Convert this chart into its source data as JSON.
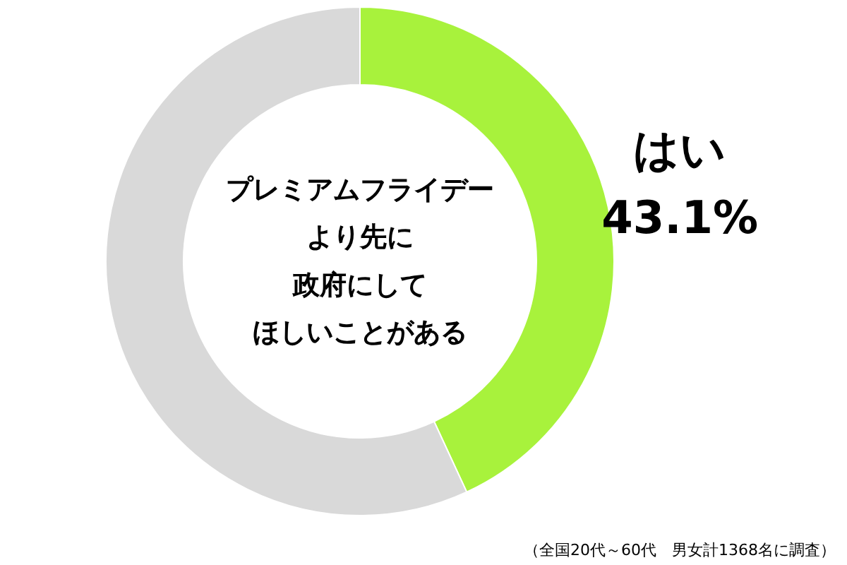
{
  "chart_data": {
    "type": "donut",
    "categories": [
      "はい",
      null
    ],
    "values": [
      43.1,
      56.9
    ],
    "colors": [
      "#a8f23c",
      "#d9d9d9"
    ],
    "value_labels": [
      "43.1%",
      null
    ],
    "annotations": [
      "プレミアムフライデー",
      "より先に",
      "政府にして",
      "ほしいことがある",
      "（全国20代～60代　男女計1368名に調査）"
    ]
  }
}
